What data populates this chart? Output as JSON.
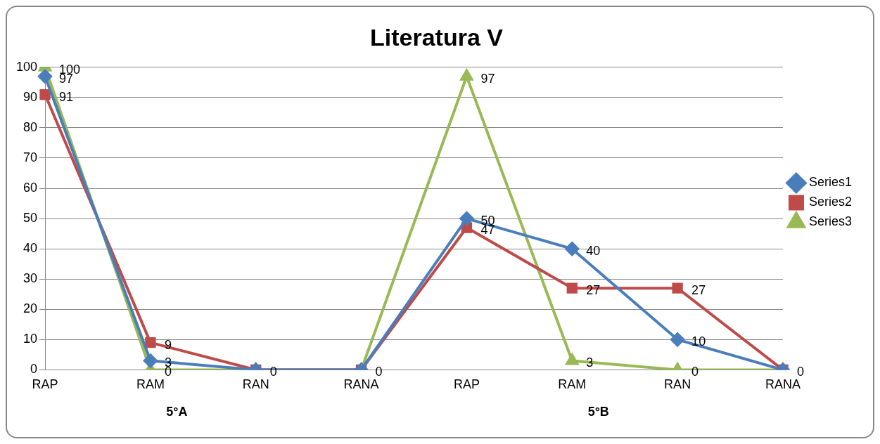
{
  "chart_data": {
    "type": "line",
    "title": "Literatura V",
    "categories": [
      "RAP",
      "RAM",
      "RAN",
      "RANA",
      "RAP",
      "RAM",
      "RAN",
      "RANA"
    ],
    "series": [
      {
        "name": "Series1",
        "color": "#4a7ebb",
        "marker": "diamond",
        "values": [
          97,
          3,
          0,
          0,
          50,
          40,
          10,
          0
        ],
        "value_labels": [
          "97",
          "3",
          "0",
          "0",
          "50",
          "40",
          "10",
          "0"
        ]
      },
      {
        "name": "Series2",
        "color": "#be4b48",
        "marker": "square",
        "values": [
          91,
          9,
          0,
          0,
          47,
          27,
          27,
          0
        ],
        "value_labels": [
          "91",
          "9",
          null,
          null,
          "47",
          "27",
          "27",
          null
        ]
      },
      {
        "name": "Series3",
        "color": "#98b954",
        "marker": "triangle",
        "values": [
          100,
          0,
          0,
          0,
          97,
          3,
          0,
          0
        ],
        "value_labels": [
          "100",
          "0",
          null,
          null,
          "97",
          "3",
          "0",
          null
        ]
      }
    ],
    "annotations": [
      "5°A",
      "5°B"
    ],
    "ylim": [
      0,
      100
    ],
    "yticks": [
      0,
      10,
      20,
      30,
      40,
      50,
      60,
      70,
      80,
      90,
      100
    ],
    "grid": "y",
    "legend": "right"
  }
}
